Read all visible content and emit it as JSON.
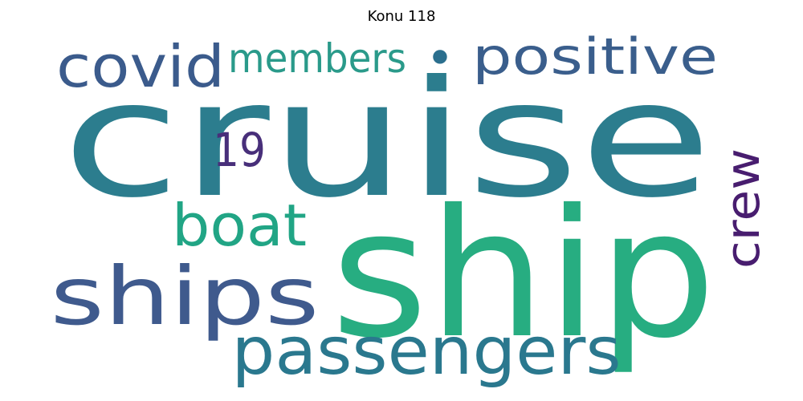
{
  "title": "Konu 118",
  "words": [
    {
      "text": "cruise",
      "color": "#2c7d8e"
    },
    {
      "text": "ship",
      "color": "#27ad81"
    },
    {
      "text": "ships",
      "color": "#3f5a8d"
    },
    {
      "text": "passengers",
      "color": "#2a788e"
    },
    {
      "text": "covid",
      "color": "#3b5b8c"
    },
    {
      "text": "members",
      "color": "#2a9a8a"
    },
    {
      "text": "positive",
      "color": "#3a5e8c"
    },
    {
      "text": "boat",
      "color": "#21a585"
    },
    {
      "text": "19",
      "color": "#482f7a"
    },
    {
      "text": "crew",
      "color": "#481d6f"
    },
    {
      "text": "•",
      "color": "#2b6f8e"
    }
  ]
}
